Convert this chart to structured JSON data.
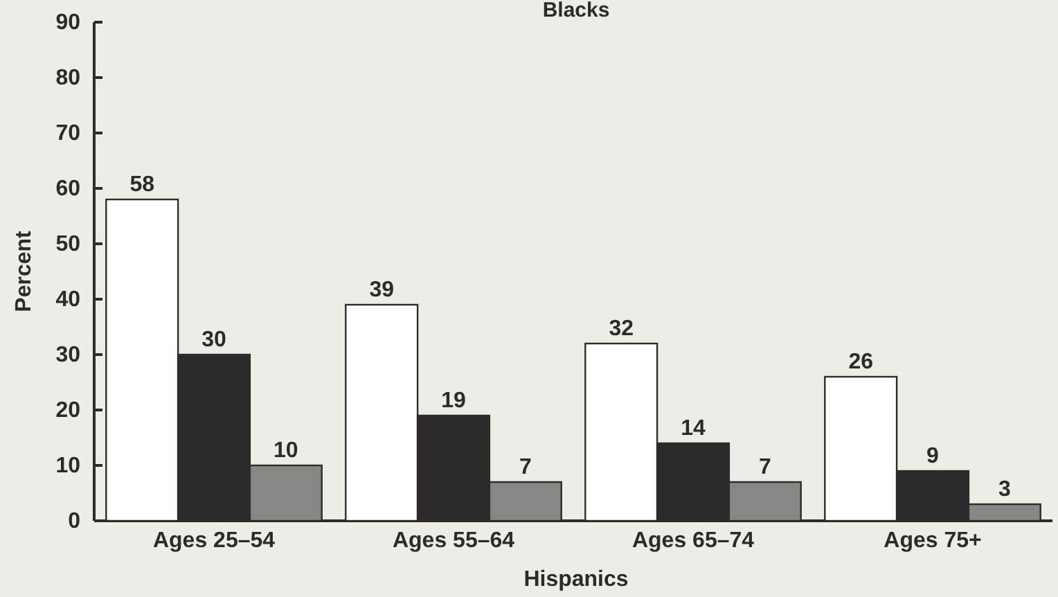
{
  "chart_data": {
    "type": "bar",
    "title": "Blacks",
    "xlabel": "Hispanics",
    "ylabel": "Percent",
    "categories": [
      "Ages 25–54",
      "Ages 55–64",
      "Ages 65–74",
      "Ages 75+"
    ],
    "series": [
      {
        "color": "#ffffff",
        "values": [
          58,
          39,
          32,
          26
        ]
      },
      {
        "color": "#2e2a2b",
        "values": [
          30,
          19,
          14,
          9
        ]
      },
      {
        "color": "#8a8686",
        "values": [
          10,
          7,
          7,
          3
        ]
      }
    ],
    "ylim": [
      0,
      90
    ],
    "yticks": [
      0,
      10,
      20,
      30,
      40,
      50,
      60,
      70,
      80,
      90
    ],
    "data_labels": true,
    "grid": false
  }
}
